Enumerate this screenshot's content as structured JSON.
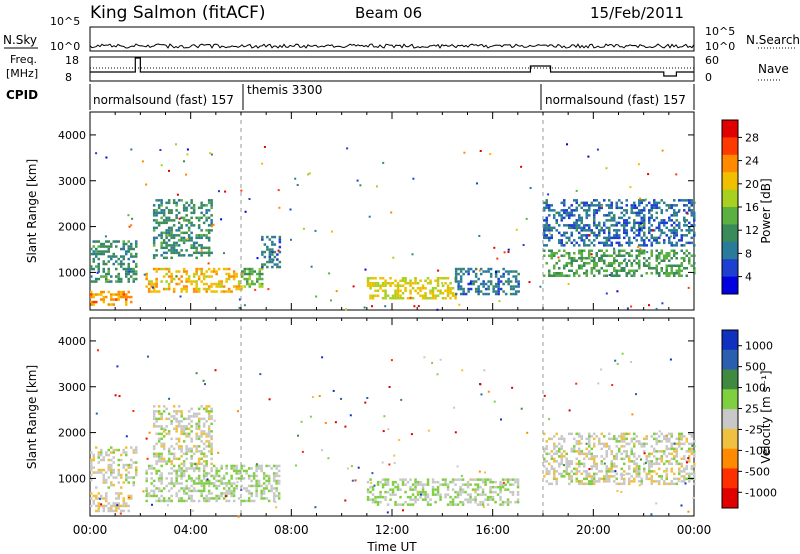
{
  "header": {
    "station": "King Salmon (fitACF)",
    "beam": "Beam 06",
    "date": "15/Feb/2011"
  },
  "summary_panel": {
    "nsky_label": "N.Sky",
    "nsearch_label": "N.Search",
    "freq_label_1": "Freq.",
    "freq_label_2": "[MHz]",
    "nave_label": "Nave",
    "cpid_label": "CPID",
    "nsky_ticks": [
      "10^5",
      "10^0"
    ],
    "nsearch_ticks": [
      "10^5",
      "10^0"
    ],
    "freq_ticks": [
      "18",
      "8"
    ],
    "nave_ticks": [
      "60",
      "0"
    ],
    "cpid_segments": [
      {
        "label": "normalsound (fast) 157",
        "start_hour": 0,
        "end_hour": 6
      },
      {
        "label": "themis 3300",
        "start_hour": 6,
        "end_hour": 18
      },
      {
        "label": "normalsound (fast) 157",
        "start_hour": 18,
        "end_hour": 24
      }
    ]
  },
  "power_panel": {
    "ylabel": "Slant Range [km]",
    "colorbar_label": "Power [dB]",
    "colorbar_ticks": [
      "28",
      "24",
      "20",
      "16",
      "12",
      "8",
      "4"
    ],
    "colors": [
      "#0000e0",
      "#1e40d0",
      "#2a7a9a",
      "#3a8a5a",
      "#5ab040",
      "#a8d020",
      "#f0c000",
      "#ff8a00",
      "#ff3a00",
      "#e00000"
    ]
  },
  "velocity_panel": {
    "ylabel": "Slant Range [km]",
    "colorbar_label": "Velocity [m s⁻¹]",
    "colorbar_ticks": [
      "1000",
      "500",
      "100",
      "25",
      "-25",
      "-100",
      "-500",
      "-1000"
    ],
    "colors": [
      "#1030c0",
      "#2a5fb0",
      "#3f8a40",
      "#7fcf40",
      "#c8c8c8",
      "#f0c040",
      "#ff8a00",
      "#ff3000",
      "#e00000"
    ]
  },
  "x_axis": {
    "label": "Time UT",
    "ticks": [
      "00:00",
      "04:00",
      "08:00",
      "12:00",
      "16:00",
      "20:00",
      "00:00"
    ]
  },
  "chart_data": [
    {
      "type": "heatmap",
      "title": "Power",
      "xlabel": "",
      "ylabel": "Slant Range [km]",
      "xlim": [
        0,
        24
      ],
      "ylim": [
        180,
        4500
      ],
      "yticks": [
        1000,
        2000,
        3000,
        4000
      ],
      "colorbar": {
        "label": "Power [dB]",
        "range": [
          0,
          30
        ]
      },
      "echo_regions": [
        {
          "start_hour": 0.0,
          "end_hour": 1.6,
          "range_min_km": 300,
          "range_max_km": 600,
          "value": 22
        },
        {
          "start_hour": 0.0,
          "end_hour": 1.8,
          "range_min_km": 800,
          "range_max_km": 1700,
          "value": 10
        },
        {
          "start_hour": 2.2,
          "end_hour": 6.0,
          "range_min_km": 600,
          "range_max_km": 1100,
          "value": 20
        },
        {
          "start_hour": 2.5,
          "end_hour": 4.8,
          "range_min_km": 1300,
          "range_max_km": 2600,
          "value": 10
        },
        {
          "start_hour": 6.0,
          "end_hour": 6.8,
          "range_min_km": 700,
          "range_max_km": 1100,
          "value": 14
        },
        {
          "start_hour": 6.8,
          "end_hour": 7.5,
          "range_min_km": 1100,
          "range_max_km": 1800,
          "value": 8
        },
        {
          "start_hour": 11.0,
          "end_hour": 14.5,
          "range_min_km": 450,
          "range_max_km": 900,
          "value": 18
        },
        {
          "start_hour": 14.5,
          "end_hour": 17.0,
          "range_min_km": 500,
          "range_max_km": 1100,
          "value": 8
        },
        {
          "start_hour": 18.0,
          "end_hour": 24.0,
          "range_min_km": 900,
          "range_max_km": 1500,
          "value": 12
        },
        {
          "start_hour": 18.0,
          "end_hour": 24.0,
          "range_min_km": 1600,
          "range_max_km": 2600,
          "value": 7
        }
      ]
    },
    {
      "type": "heatmap",
      "title": "Velocity",
      "xlabel": "Time UT",
      "ylabel": "Slant Range [km]",
      "xlim": [
        0,
        24
      ],
      "ylim": [
        180,
        4500
      ],
      "yticks": [
        1000,
        2000,
        3000,
        4000
      ],
      "colorbar": {
        "label": "Velocity [m s⁻¹]",
        "range": [
          -1000,
          1000
        ]
      },
      "echo_regions": [
        {
          "start_hour": 0.0,
          "end_hour": 1.6,
          "range_min_km": 300,
          "range_max_km": 700,
          "value": -100
        },
        {
          "start_hour": 0.0,
          "end_hour": 1.8,
          "range_min_km": 800,
          "range_max_km": 1700,
          "value": 0
        },
        {
          "start_hour": 2.2,
          "end_hour": 7.5,
          "range_min_km": 500,
          "range_max_km": 1300,
          "value": 100
        },
        {
          "start_hour": 2.5,
          "end_hour": 4.8,
          "range_min_km": 1300,
          "range_max_km": 2600,
          "value": 0
        },
        {
          "start_hour": 11.0,
          "end_hour": 17.0,
          "range_min_km": 450,
          "range_max_km": 1000,
          "value": 100
        },
        {
          "start_hour": 18.0,
          "end_hour": 24.0,
          "range_min_km": 900,
          "range_max_km": 2000,
          "value": 0
        }
      ]
    }
  ]
}
